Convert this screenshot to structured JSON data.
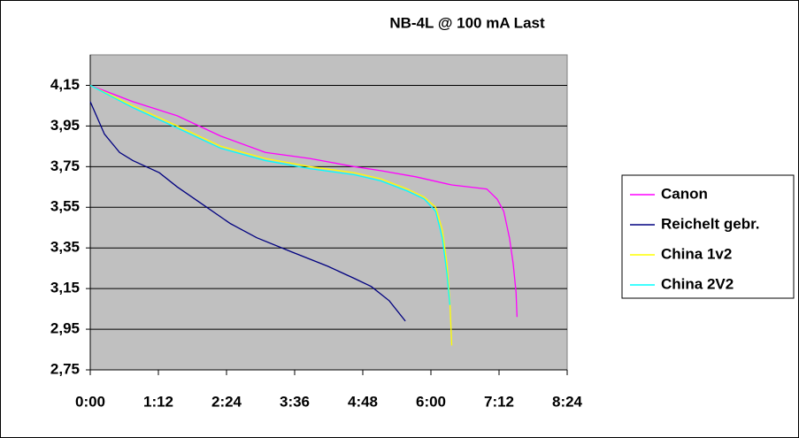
{
  "chart_data": {
    "type": "line",
    "title": "NB-4L @ 100 mA Last",
    "xlim": [
      0,
      504
    ],
    "xticks": [
      {
        "value": 0,
        "label": "0:00"
      },
      {
        "value": 72,
        "label": "1:12"
      },
      {
        "value": 144,
        "label": "2:24"
      },
      {
        "value": 216,
        "label": "3:36"
      },
      {
        "value": 288,
        "label": "4:48"
      },
      {
        "value": 360,
        "label": "6:00"
      },
      {
        "value": 432,
        "label": "7:12"
      },
      {
        "value": 504,
        "label": "8:24"
      }
    ],
    "ylim": [
      2.75,
      4.3
    ],
    "yticks": [
      {
        "value": 2.75,
        "label": "2,75"
      },
      {
        "value": 2.95,
        "label": "2,95"
      },
      {
        "value": 3.15,
        "label": "3,15"
      },
      {
        "value": 3.35,
        "label": "3,35"
      },
      {
        "value": 3.55,
        "label": "3,55"
      },
      {
        "value": 3.75,
        "label": "3,75"
      },
      {
        "value": 3.95,
        "label": "3,95"
      },
      {
        "value": 4.15,
        "label": "4,15"
      }
    ],
    "grid": true,
    "legend": "right",
    "series": [
      {
        "name": "Canon",
        "color": "#ff00ff",
        "x": [
          0,
          45,
          92,
          138,
          185,
          232,
          279,
          307,
          344,
          382,
          419,
          430,
          437,
          443,
          447,
          450,
          451
        ],
        "values": [
          4.15,
          4.07,
          4.0,
          3.9,
          3.82,
          3.79,
          3.75,
          3.73,
          3.7,
          3.66,
          3.64,
          3.59,
          3.53,
          3.4,
          3.27,
          3.13,
          3.01
        ]
      },
      {
        "name": "Reichelt gebr.",
        "color": "#000080",
        "x": [
          0,
          15,
          31,
          45,
          73,
          92,
          120,
          148,
          176,
          213,
          251,
          279,
          297,
          316,
          333
        ],
        "values": [
          4.07,
          3.91,
          3.82,
          3.78,
          3.72,
          3.65,
          3.56,
          3.47,
          3.4,
          3.33,
          3.26,
          3.2,
          3.16,
          3.09,
          2.99
        ]
      },
      {
        "name": "China 1v2",
        "color": "#ffff00",
        "x": [
          0,
          45,
          92,
          138,
          185,
          232,
          279,
          307,
          335,
          353,
          365,
          372,
          377,
          380,
          382
        ],
        "values": [
          4.15,
          4.05,
          3.95,
          3.85,
          3.79,
          3.75,
          3.72,
          3.69,
          3.64,
          3.6,
          3.55,
          3.44,
          3.27,
          3.09,
          2.87
        ]
      },
      {
        "name": "China 2V2",
        "color": "#00ffff",
        "x": [
          0,
          45,
          92,
          138,
          185,
          232,
          279,
          307,
          335,
          353,
          365,
          372,
          377,
          380
        ],
        "values": [
          4.15,
          4.04,
          3.94,
          3.84,
          3.78,
          3.74,
          3.71,
          3.68,
          3.63,
          3.59,
          3.53,
          3.4,
          3.22,
          3.07
        ]
      }
    ]
  }
}
